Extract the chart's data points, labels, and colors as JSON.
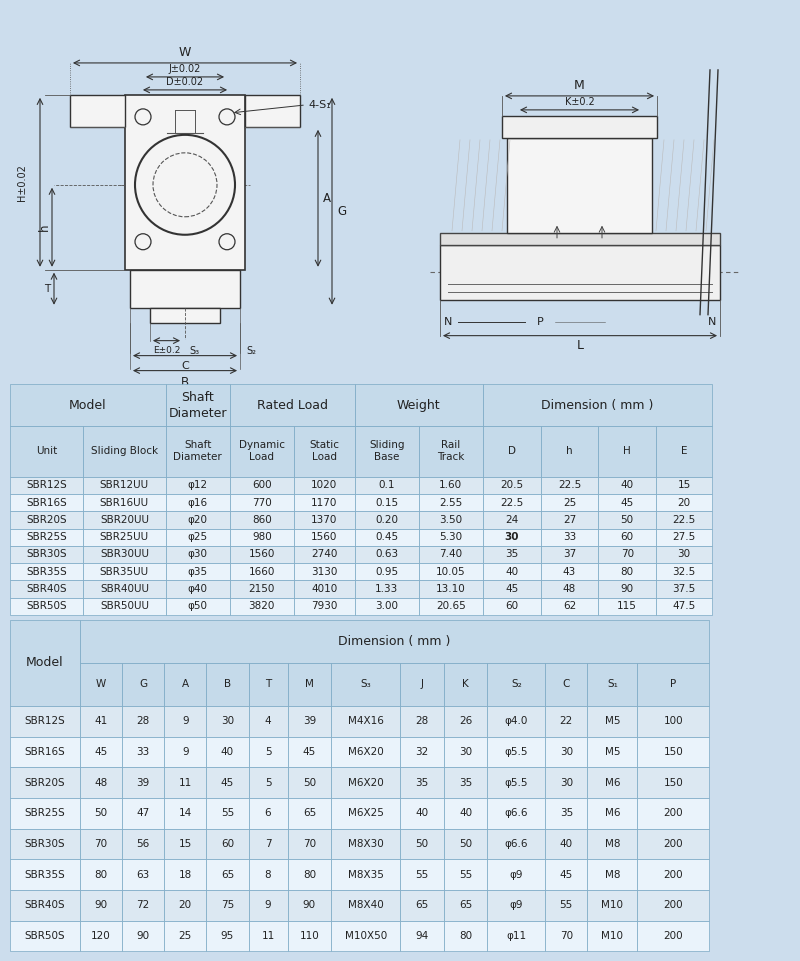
{
  "bg_color": "#ccdded",
  "drawing_bg": "#f0f6fc",
  "table_bg": "#dce9f5",
  "header_bg": "#c5daea",
  "row_bg_even": "#dce8f2",
  "row_bg_odd": "#eaf3fb",
  "border_color": "#8fb0cc",
  "text_color": "#222222",
  "table1_data": [
    [
      "SBR12S",
      "SBR12UU",
      "φ12",
      "600",
      "1020",
      "0.1",
      "1.60",
      "20.5",
      "22.5",
      "40",
      "15"
    ],
    [
      "SBR16S",
      "SBR16UU",
      "φ16",
      "770",
      "1170",
      "0.15",
      "2.55",
      "22.5",
      "25",
      "45",
      "20"
    ],
    [
      "SBR20S",
      "SBR20UU",
      "φ20",
      "860",
      "1370",
      "0.20",
      "3.50",
      "24",
      "27",
      "50",
      "22.5"
    ],
    [
      "SBR25S",
      "SBR25UU",
      "φ25",
      "980",
      "1560",
      "0.45",
      "5.30",
      "30",
      "33",
      "60",
      "27.5"
    ],
    [
      "SBR30S",
      "SBR30UU",
      "φ30",
      "1560",
      "2740",
      "0.63",
      "7.40",
      "35",
      "37",
      "70",
      "30"
    ],
    [
      "SBR35S",
      "SBR35UU",
      "φ35",
      "1660",
      "3130",
      "0.95",
      "10.05",
      "40",
      "43",
      "80",
      "32.5"
    ],
    [
      "SBR40S",
      "SBR40UU",
      "φ40",
      "2150",
      "4010",
      "1.33",
      "13.10",
      "45",
      "48",
      "90",
      "37.5"
    ],
    [
      "SBR50S",
      "SBR50UU",
      "φ50",
      "3820",
      "7930",
      "3.00",
      "20.65",
      "60",
      "62",
      "115",
      "47.5"
    ]
  ],
  "table1_bold_row": 3,
  "table1_bold_col": 7,
  "table2_data": [
    [
      "SBR12S",
      "41",
      "28",
      "9",
      "30",
      "4",
      "39",
      "M4X16",
      "28",
      "26",
      "φ4.0",
      "22",
      "M5",
      "100"
    ],
    [
      "SBR16S",
      "45",
      "33",
      "9",
      "40",
      "5",
      "45",
      "M6X20",
      "32",
      "30",
      "φ5.5",
      "30",
      "M5",
      "150"
    ],
    [
      "SBR20S",
      "48",
      "39",
      "11",
      "45",
      "5",
      "50",
      "M6X20",
      "35",
      "35",
      "φ5.5",
      "30",
      "M6",
      "150"
    ],
    [
      "SBR25S",
      "50",
      "47",
      "14",
      "55",
      "6",
      "65",
      "M6X25",
      "40",
      "40",
      "φ6.6",
      "35",
      "M6",
      "200"
    ],
    [
      "SBR30S",
      "70",
      "56",
      "15",
      "60",
      "7",
      "70",
      "M8X30",
      "50",
      "50",
      "φ6.6",
      "40",
      "M8",
      "200"
    ],
    [
      "SBR35S",
      "80",
      "63",
      "18",
      "65",
      "8",
      "80",
      "M8X35",
      "55",
      "55",
      "φ9",
      "45",
      "M8",
      "200"
    ],
    [
      "SBR40S",
      "90",
      "72",
      "20",
      "75",
      "9",
      "90",
      "M8X40",
      "65",
      "65",
      "φ9",
      "55",
      "M10",
      "200"
    ],
    [
      "SBR50S",
      "120",
      "90",
      "25",
      "95",
      "11",
      "110",
      "M10X50",
      "94",
      "80",
      "φ11",
      "70",
      "M10",
      "200"
    ]
  ]
}
